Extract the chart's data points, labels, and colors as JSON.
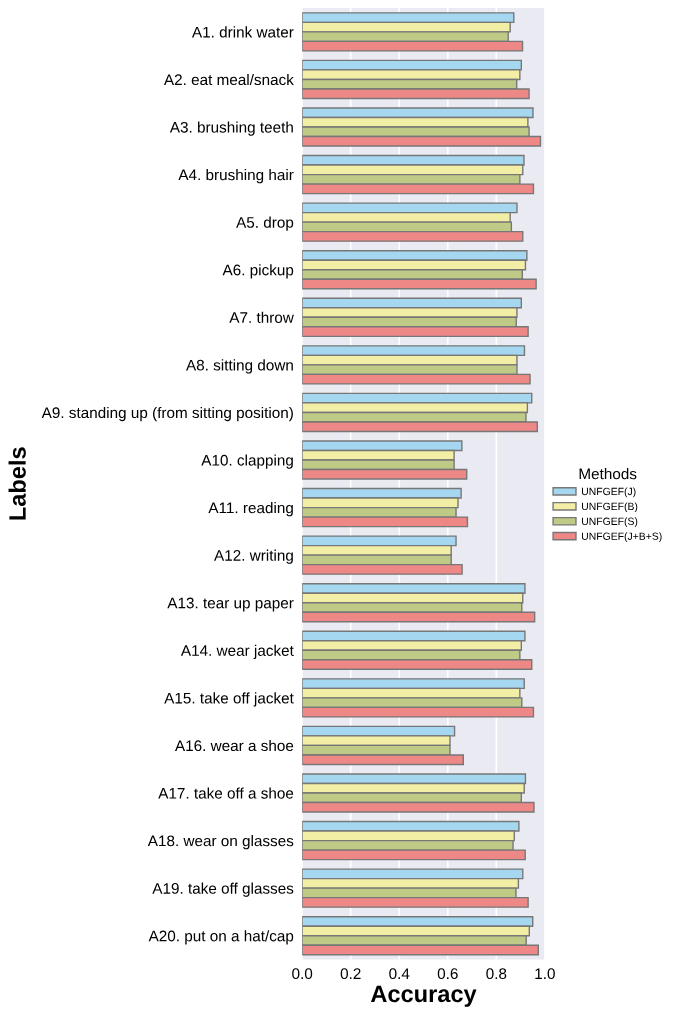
{
  "chart_data": {
    "type": "bar",
    "orientation": "horizontal",
    "xlabel": "Accuracy",
    "ylabel": "Labels",
    "legend_title": "Methods",
    "legend": "right",
    "categories": [
      "A1. drink water",
      "A2. eat meal/snack",
      "A3. brushing teeth",
      "A4. brushing hair",
      "A5. drop",
      "A6. pickup",
      "A7. throw",
      "A8. sitting down",
      "A9. standing up (from sitting position)",
      "A10. clapping",
      "A11. reading",
      "A12. writing",
      "A13. tear up paper",
      "A14. wear jacket",
      "A15. take off jacket",
      "A16. wear a shoe",
      "A17. take off a shoe",
      "A18. wear on glasses",
      "A19. take off glasses",
      "A20. put on a hat/cap"
    ],
    "series": [
      {
        "name": "UNFGEF(J)",
        "color": "#a5d8f0",
        "values": [
          0.872,
          0.903,
          0.951,
          0.914,
          0.885,
          0.926,
          0.903,
          0.916,
          0.946,
          0.658,
          0.655,
          0.634,
          0.918,
          0.918,
          0.915,
          0.628,
          0.92,
          0.893,
          0.909,
          0.95
        ]
      },
      {
        "name": "UNFGEF(B)",
        "color": "#f2eea5",
        "values": [
          0.857,
          0.897,
          0.93,
          0.909,
          0.857,
          0.92,
          0.885,
          0.885,
          0.928,
          0.626,
          0.642,
          0.614,
          0.909,
          0.903,
          0.897,
          0.609,
          0.915,
          0.874,
          0.891,
          0.936
        ]
      },
      {
        "name": "UNFGEF(S)",
        "color": "#bfca87",
        "values": [
          0.849,
          0.884,
          0.935,
          0.897,
          0.862,
          0.907,
          0.882,
          0.885,
          0.922,
          0.626,
          0.634,
          0.614,
          0.905,
          0.897,
          0.905,
          0.609,
          0.903,
          0.869,
          0.881,
          0.923
        ]
      },
      {
        "name": "UNFGEF(J+B+S)",
        "color": "#ee8887",
        "values": [
          0.908,
          0.935,
          0.982,
          0.953,
          0.909,
          0.964,
          0.931,
          0.939,
          0.969,
          0.678,
          0.681,
          0.659,
          0.958,
          0.946,
          0.953,
          0.664,
          0.955,
          0.919,
          0.931,
          0.973
        ]
      }
    ],
    "xlim": [
      0,
      1
    ],
    "xticks": [
      {
        "value": 0,
        "label": "0.0"
      },
      {
        "value": 0.2,
        "label": "0.2"
      },
      {
        "value": 0.4,
        "label": "0.4"
      },
      {
        "value": 0.6,
        "label": "0.6"
      },
      {
        "value": 0.8,
        "label": "0.8"
      },
      {
        "value": 1,
        "label": "1.0"
      }
    ],
    "grid": "x"
  }
}
